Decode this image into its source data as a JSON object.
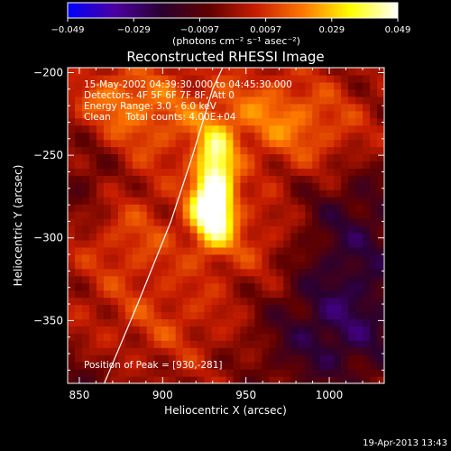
{
  "chart_data": {
    "type": "heatmap",
    "title": "Reconstructed RHESSI Image",
    "xlabel": "Heliocentric X (arcsec)",
    "ylabel": "Heliocentric Y (arcsec)",
    "xlim": [
      843,
      1033
    ],
    "ylim": [
      -388,
      -197
    ],
    "xticks": [
      850,
      900,
      950,
      1000
    ],
    "yticks": [
      -200,
      -250,
      -300,
      -350
    ],
    "colorbar": {
      "ticks": [
        "−0.049",
        "−0.029",
        "−0.0097",
        "0.0097",
        "0.029",
        "0.049"
      ],
      "range": [
        -0.049,
        0.049
      ],
      "units_label": "(photons cm⁻² s⁻¹ asec⁻²)",
      "colors": [
        "#0000ff",
        "#4b00a0",
        "#2a0030",
        "#600000",
        "#c81e00",
        "#ff7800",
        "#ffff00",
        "#ffffff"
      ]
    },
    "info_lines": [
      "15-May-2002 04:39:30.000 to 04:45:30.000",
      "Detectors: 4F 5F 6F 7F 8F, Att 0",
      "Energy Range: 3.0 - 6.0 keV",
      "Clean     Total counts: 4.00E+04"
    ],
    "peak_label": "Position of Peak = [930,-281]",
    "peak": {
      "x": 930,
      "y": -281,
      "value": 0.049
    },
    "blobs": [
      {
        "x": 930,
        "y": -281,
        "sx": 9,
        "sy": 16,
        "v": 0.06
      },
      {
        "x": 932,
        "y": -250,
        "sx": 8,
        "sy": 14,
        "v": 0.028
      },
      {
        "x": 895,
        "y": -225,
        "sx": 30,
        "sy": 22,
        "v": 0.016
      },
      {
        "x": 880,
        "y": -300,
        "sx": 25,
        "sy": 20,
        "v": 0.012
      },
      {
        "x": 965,
        "y": -225,
        "sx": 25,
        "sy": 18,
        "v": 0.016
      },
      {
        "x": 1000,
        "y": -240,
        "sx": 25,
        "sy": 20,
        "v": 0.012
      },
      {
        "x": 955,
        "y": -300,
        "sx": 18,
        "sy": 18,
        "v": 0.01
      },
      {
        "x": 905,
        "y": -350,
        "sx": 35,
        "sy": 20,
        "v": 0.01
      },
      {
        "x": 870,
        "y": -215,
        "sx": 15,
        "sy": 12,
        "v": 0.01
      },
      {
        "x": 1015,
        "y": -300,
        "sx": 25,
        "sy": 40,
        "v": -0.018
      },
      {
        "x": 1000,
        "y": -360,
        "sx": 35,
        "sy": 25,
        "v": -0.018
      },
      {
        "x": 855,
        "y": -265,
        "sx": 14,
        "sy": 22,
        "v": -0.01
      },
      {
        "x": 850,
        "y": -385,
        "sx": 20,
        "sy": 15,
        "v": -0.008
      }
    ],
    "limb_line": [
      [
        865,
        -388
      ],
      [
        885,
        -340
      ],
      [
        905,
        -290
      ],
      [
        918,
        -250
      ],
      [
        930,
        -210
      ],
      [
        936,
        -197
      ]
    ]
  },
  "footer": {
    "timestamp": "19-Apr-2013 13:43"
  }
}
